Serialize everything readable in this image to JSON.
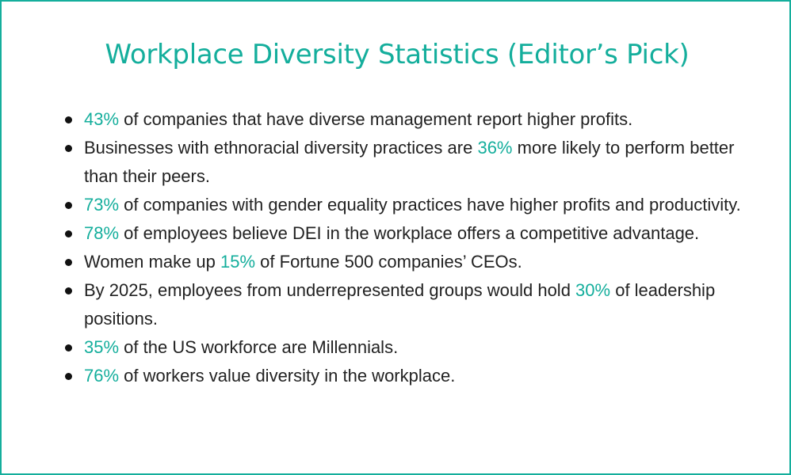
{
  "title": "Workplace Diversity Statistics (Editor’s Pick)",
  "accent_color": "#14ae9c",
  "items": [
    {
      "before": "",
      "highlight": "43%",
      "after": " of companies that have diverse management report higher profits."
    },
    {
      "before": "Businesses with ethnoracial diversity practices are ",
      "highlight": "36%",
      "after": " more likely to perform better than their peers."
    },
    {
      "before": "",
      "highlight": "73%",
      "after": " of companies with gender equality practices have higher profits and productivity."
    },
    {
      "before": "",
      "highlight": "78%",
      "after": " of employees believe DEI in the workplace offers a competitive advantage."
    },
    {
      "before": "Women make up ",
      "highlight": "15%",
      "after": " of Fortune 500 companies’ CEOs."
    },
    {
      "before": "By 2025, employees from underrepresented groups would hold ",
      "highlight": "30%",
      "after": " of leadership positions."
    },
    {
      "before": "",
      "highlight": "35%",
      "after": " of the US workforce are Millennials."
    },
    {
      "before": "",
      "highlight": "76%",
      "after": " of workers value diversity in the workplace."
    }
  ]
}
